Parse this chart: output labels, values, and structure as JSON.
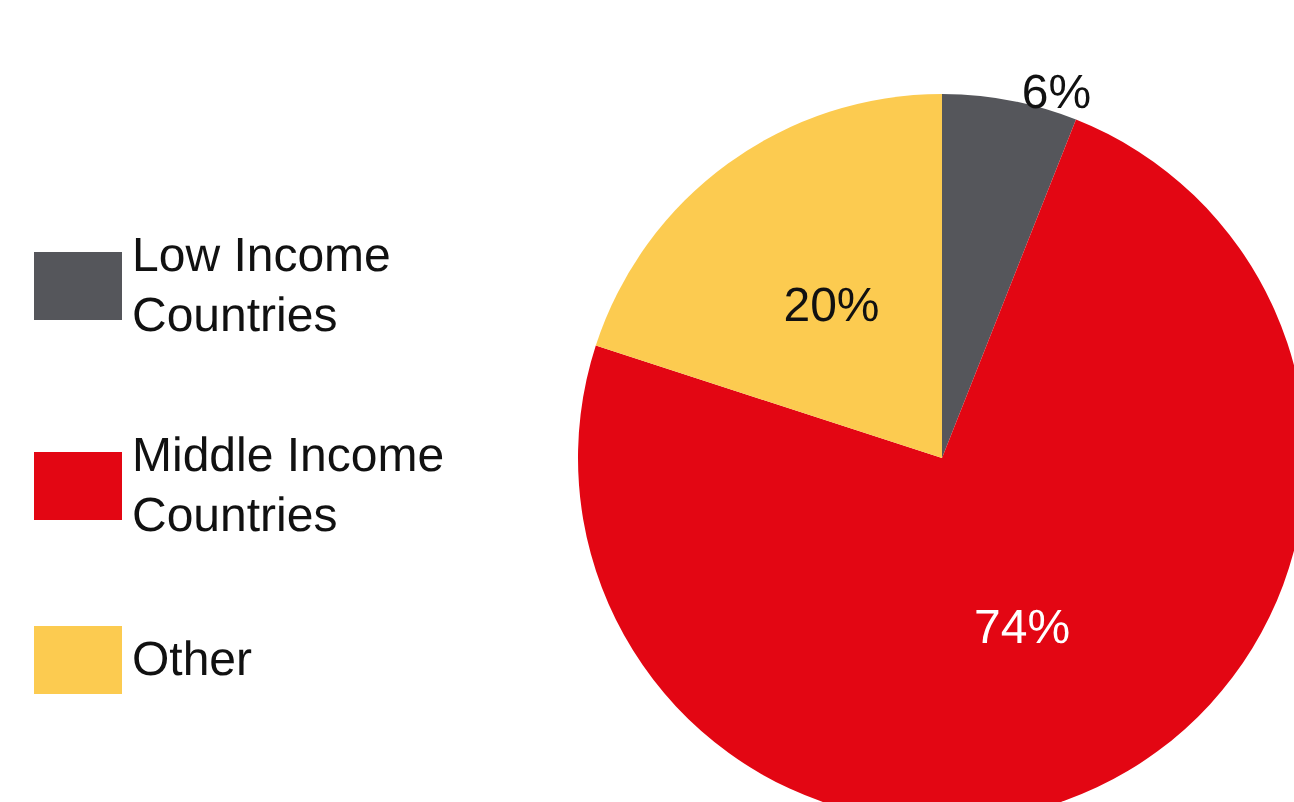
{
  "chart_data": {
    "type": "pie",
    "categories": [
      "Low Income Countries",
      "Middle Income Countries",
      "Other"
    ],
    "values": [
      6,
      74,
      20
    ],
    "colors": [
      "#55565b",
      "#e30613",
      "#fccb50"
    ],
    "value_labels": [
      "6%",
      "74%",
      "20%"
    ],
    "legend": "left"
  }
}
